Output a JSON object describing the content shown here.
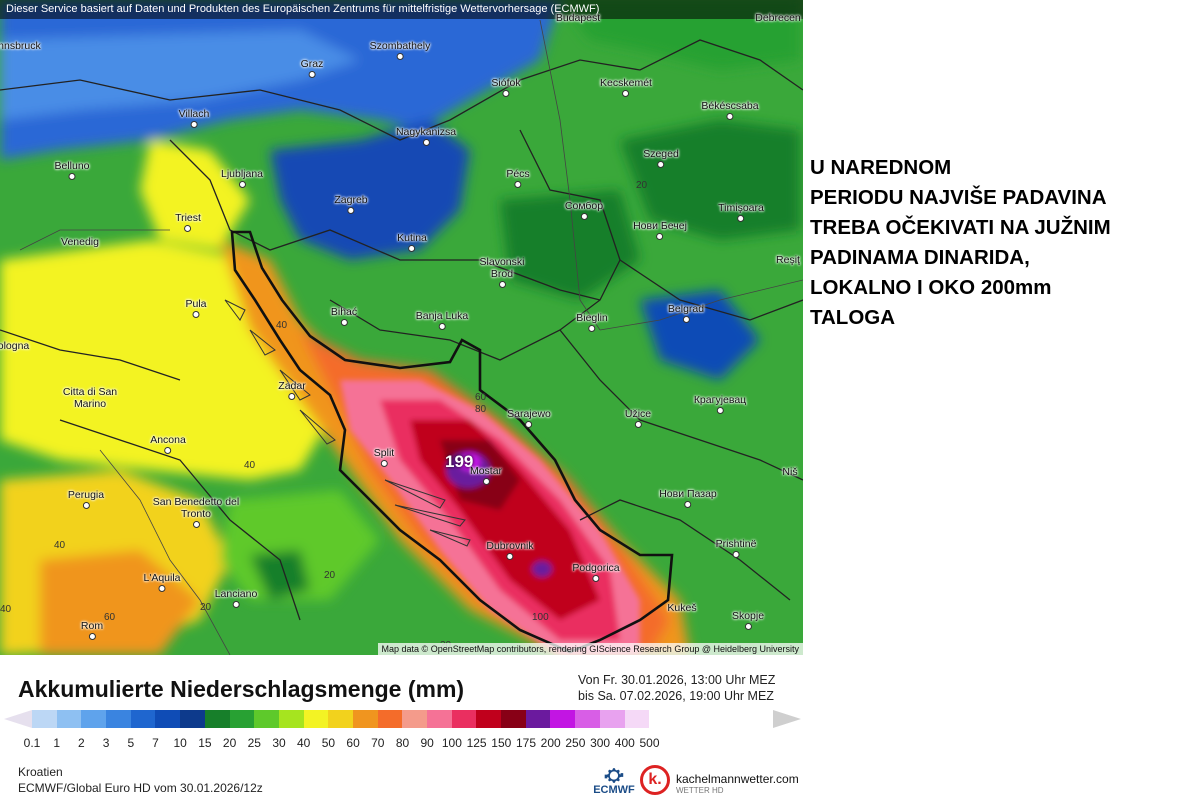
{
  "map": {
    "disclaimer": "Dieser Service basiert auf Daten und Produkten des Europäischen Zentrums für mittelfristige Wettervorhersage (ECMWF)",
    "attribution": "Map data © OpenStreetMap contributors, rendering GIScience Research Group @ Heidelberg University",
    "peak_value": "199",
    "cities": [
      "Innsbruck",
      "Graz",
      "Szombathely",
      "Budapest",
      "Debrecen",
      "Siófok",
      "Kecskemét",
      "Villach",
      "Nagykanizsa",
      "Békéscsaba",
      "Belluno",
      "Ljubljana",
      "Szeged",
      "Pécs",
      "Zagreb",
      "Timişoara",
      "Сомбор",
      "Нови Бечеј",
      "Triest",
      "Kutina",
      "Venedig",
      "Slavonski Brod",
      "Reşiţ",
      "Bihać",
      "Banja Luka",
      "Bieglin",
      "Belgrad",
      "Pula",
      "Bologna",
      "Zadar",
      "Citta di San Marino",
      "Sarajewo",
      "Užice",
      "Крагујевац",
      "Ancona",
      "Split",
      "Mostar",
      "Niš",
      "Perugia",
      "San Benedetto del Tronto",
      "Нови Пазар",
      "Dubrovnik",
      "Prishtinë",
      "Podgorica",
      "L'Aquila",
      "Lanciano",
      "Kukeš",
      "Rom",
      "Skopje"
    ],
    "contour_labels": [
      "40",
      "40",
      "20",
      "20",
      "60",
      "80",
      "40",
      "20",
      "40",
      "60",
      "100",
      "20"
    ]
  },
  "annotation": {
    "lines": [
      "U NAREDNOM",
      "PERIODU NAJVIŠE PADAVINA",
      "TREBA OČEKIVATI NA JUŽNIM",
      "PADINAMA DINARIDA,",
      "LOKALNO I OKO 200mm",
      "TALOGA"
    ]
  },
  "legend": {
    "title": "Akkumulierte Niederschlagsmenge (mm)",
    "period_from": "Von Fr. 30.01.2026, 13:00 Uhr MEZ",
    "period_to": "bis Sa. 07.02.2026, 19:00 Uhr MEZ",
    "ticks": [
      "0.1",
      "1",
      "2",
      "3",
      "5",
      "7",
      "10",
      "15",
      "20",
      "25",
      "30",
      "40",
      "50",
      "60",
      "70",
      "80",
      "90",
      "100",
      "125",
      "150",
      "175",
      "200",
      "250",
      "300",
      "400",
      "500"
    ],
    "colors": [
      "#e6e0ee",
      "#bcd7f5",
      "#8ec0f2",
      "#5fa3ec",
      "#3a84e0",
      "#1f66cf",
      "#0f4cb6",
      "#0d3a8c",
      "#177f2a",
      "#28a133",
      "#5ec92b",
      "#a6e41f",
      "#f3f324",
      "#f2d21d",
      "#f0951f",
      "#f46c2a",
      "#f49b8b",
      "#f57296",
      "#ea2f60",
      "#c0001c",
      "#880016",
      "#6b1a9e",
      "#c215e3",
      "#d85ee6",
      "#e8a2ef",
      "#f5d9f7",
      "#cfcfcf"
    ]
  },
  "footer": {
    "region": "Kroatien",
    "model": "ECMWF/Global Euro HD vom  30.01.2026/12z",
    "ecmwf_logo": "ECMWF",
    "brand": "kachelmannwetter.com",
    "brand_sub": "WETTER HD",
    "brand_icon": "k."
  }
}
